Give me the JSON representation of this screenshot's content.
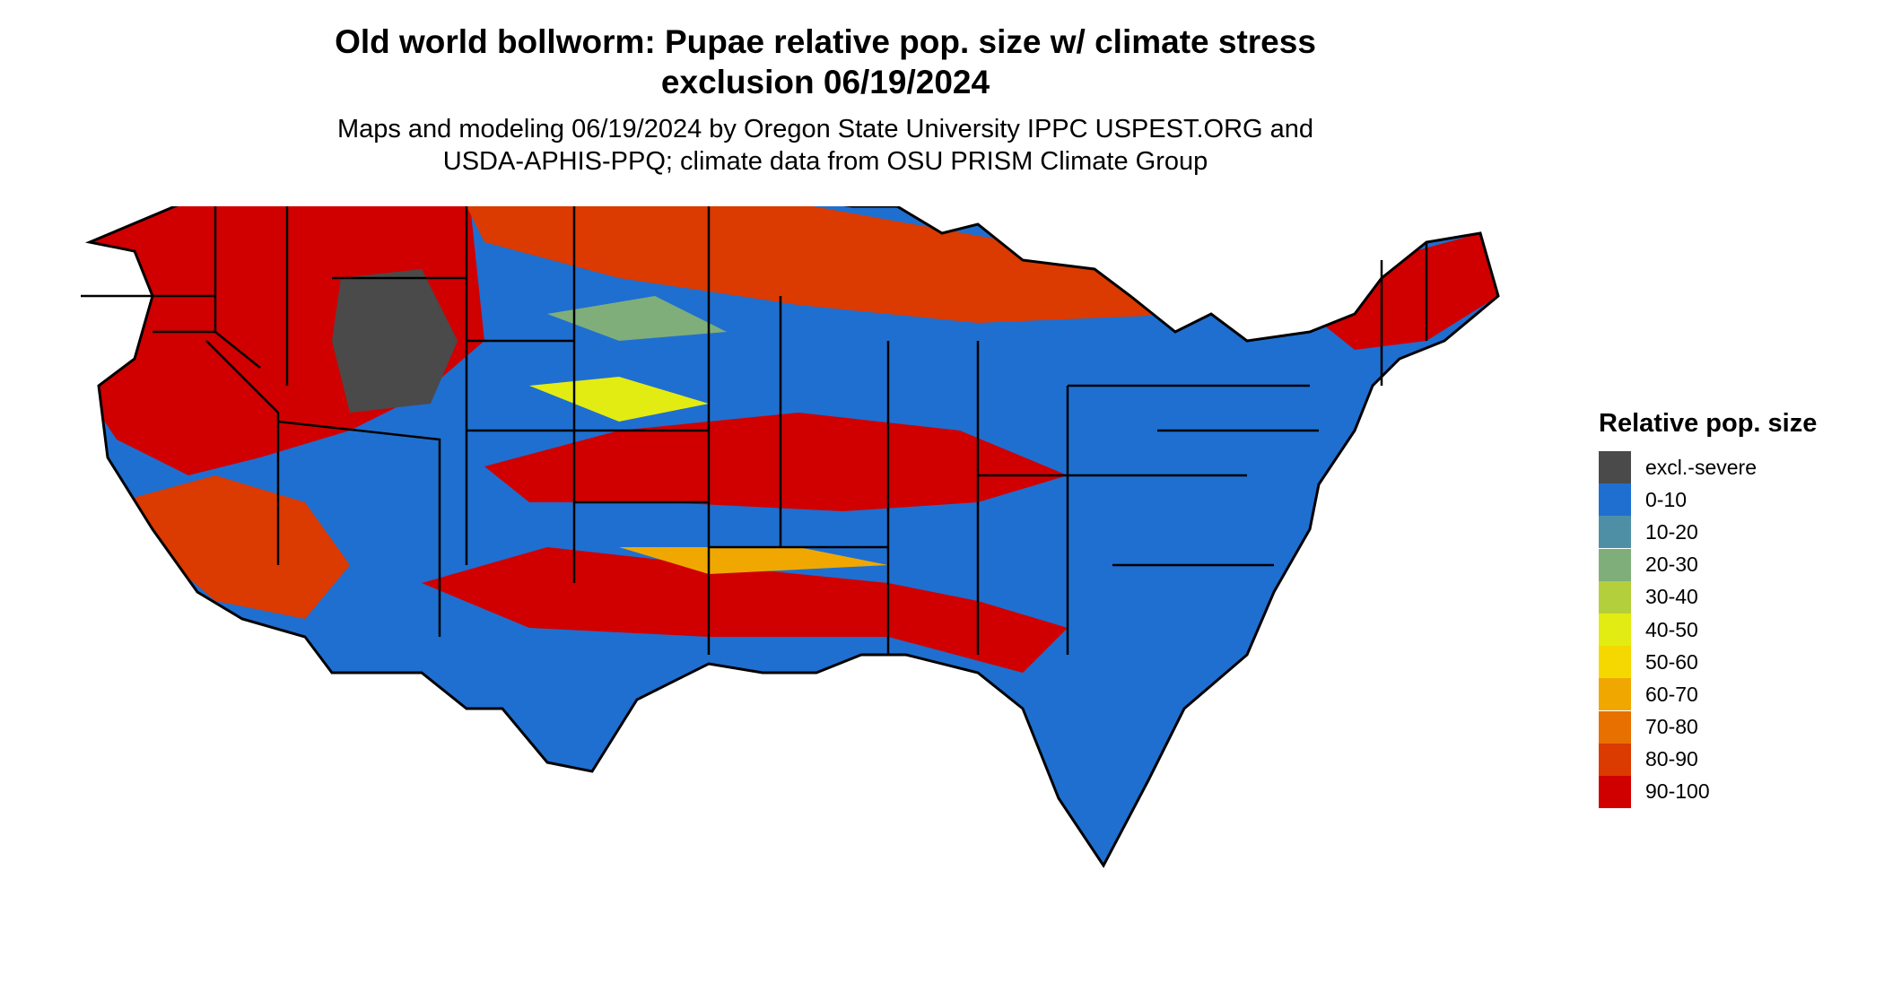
{
  "title_line1": "Old world bollworm: Pupae relative pop. size w/ climate stress",
  "title_line2": "exclusion 06/19/2024",
  "subtitle_line1": "Maps and modeling 06/19/2024 by Oregon State University IPPC USPEST.ORG and",
  "subtitle_line2": "USDA-APHIS-PPQ; climate data from OSU PRISM Climate Group",
  "legend": {
    "title": "Relative pop. size",
    "items": [
      {
        "label": "excl.-severe",
        "color": "#4a4a4a"
      },
      {
        "label": "0-10",
        "color": "#1f6fd0"
      },
      {
        "label": "10-20",
        "color": "#4f8fa6"
      },
      {
        "label": "20-30",
        "color": "#7fae7a"
      },
      {
        "label": "30-40",
        "color": "#b4cf3c"
      },
      {
        "label": "40-50",
        "color": "#e3ec12"
      },
      {
        "label": "50-60",
        "color": "#f5d800"
      },
      {
        "label": "60-70",
        "color": "#f0a800"
      },
      {
        "label": "70-80",
        "color": "#e77000"
      },
      {
        "label": "80-90",
        "color": "#db3a00"
      },
      {
        "label": "90-100",
        "color": "#d00000"
      }
    ]
  }
}
